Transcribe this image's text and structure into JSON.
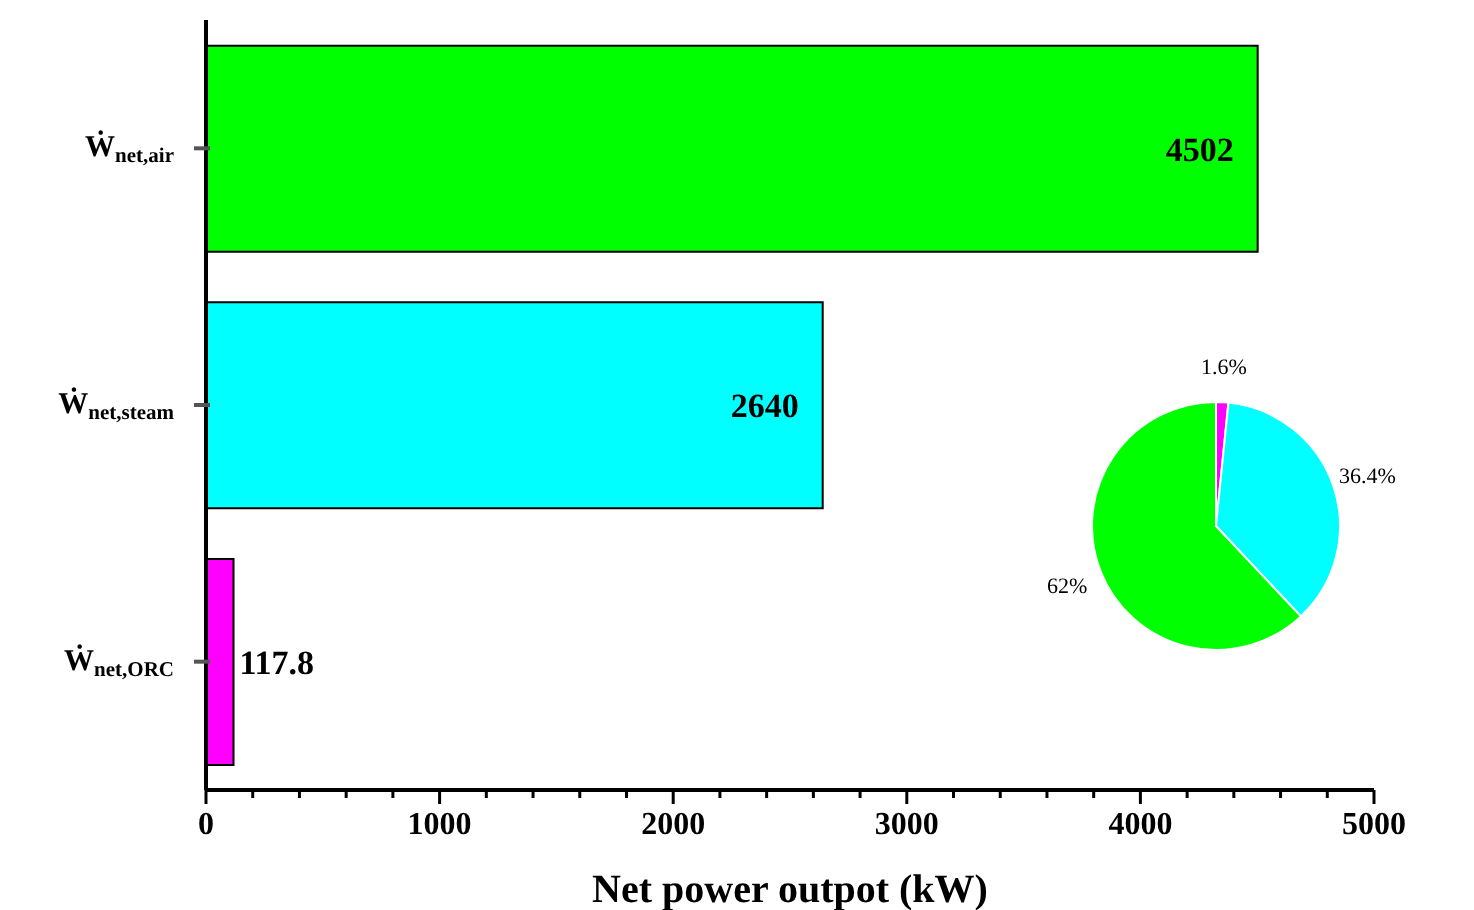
{
  "chart_data": [
    {
      "type": "bar",
      "orientation": "horizontal",
      "categories": [
        "Ẇ$_{net,air}$",
        "Ẇ$_{net,steam}$",
        "Ẇ$_{net,ORC}$"
      ],
      "values": [
        4502,
        2640,
        117.8
      ],
      "colors": [
        "#00ff00",
        "#00ffff",
        "#ff00ff"
      ],
      "xlabel": "Net power outpot (kW)",
      "xlim": [
        0,
        5000
      ],
      "xticks": [
        0,
        {
          "value": 200,
          "label": null
        },
        {
          "value": 400,
          "label": null
        },
        {
          "value": 600,
          "label": null
        },
        {
          "value": 800,
          "label": null
        },
        1000,
        {
          "value": 1200,
          "label": null
        },
        {
          "value": 1400,
          "label": null
        },
        {
          "value": 1600,
          "label": null
        },
        {
          "value": 1800,
          "label": null
        },
        2000,
        {
          "value": 2200,
          "label": null
        },
        {
          "value": 2400,
          "label": null
        },
        {
          "value": 2600,
          "label": null
        },
        {
          "value": 2800,
          "label": null
        },
        3000,
        {
          "value": 3200,
          "label": null
        },
        {
          "value": 3400,
          "label": null
        },
        {
          "value": 3600,
          "label": null
        },
        {
          "value": 3800,
          "label": null
        },
        4000,
        {
          "value": 4200,
          "label": null
        },
        {
          "value": 4400,
          "label": null
        },
        {
          "value": 4600,
          "label": null
        },
        {
          "value": 4800,
          "label": null
        },
        5000
      ],
      "data_labels": true
    },
    {
      "type": "pie",
      "categories": [
        null,
        null,
        null
      ],
      "values": [
        1.6,
        36.4,
        62
      ],
      "colors": [
        "#ff00ff",
        "#00ffff",
        "#00ff00"
      ],
      "value_labels": [
        "1.6%",
        "36.4%",
        "62%"
      ]
    }
  ]
}
